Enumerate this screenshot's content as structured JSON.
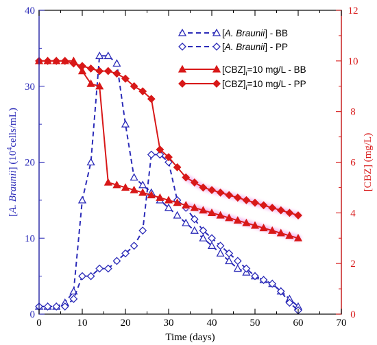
{
  "chart_data": {
    "type": "line",
    "xlabel": "Time (days)",
    "xlim": [
      0,
      70
    ],
    "x_ticks": [
      "0",
      "10",
      "20",
      "30",
      "40",
      "50",
      "60",
      "70"
    ],
    "left_axis": {
      "label_prefix": "[",
      "label_italic": "A. Braunii",
      "label_mid": "] (10",
      "label_sup": "4",
      "label_suffix": "cells/mL)",
      "ylim": [
        0,
        40
      ],
      "ticks": [
        "0",
        "10",
        "20",
        "30",
        "40"
      ],
      "color": "#2b2bb8"
    },
    "right_axis": {
      "label": "[CBZ] (mg/L)",
      "ylim": [
        0,
        12
      ],
      "ticks": [
        "0",
        "2",
        "4",
        "6",
        "8",
        "10",
        "12"
      ],
      "color": "#d81818"
    },
    "series": [
      {
        "legend_prefix": "[",
        "legend_italic": "A. Braunii",
        "legend_suffix": "] - BB",
        "axis": "left",
        "marker": "triangle",
        "line": "dashed",
        "color": "#2b2bb8",
        "x": [
          0,
          2,
          4,
          6,
          8,
          10,
          12,
          14,
          16,
          18,
          20,
          22,
          24,
          26,
          28,
          30,
          32,
          34,
          36,
          38,
          40,
          42,
          44,
          46,
          48,
          50,
          52,
          54,
          56,
          58,
          60
        ],
        "y": [
          1,
          1,
          1,
          1.5,
          3,
          15,
          20,
          34,
          34,
          33,
          25,
          18,
          17,
          16,
          15,
          14,
          13,
          12,
          11,
          10,
          9,
          8,
          7,
          6,
          5.5,
          5,
          4.5,
          4,
          3,
          2,
          1
        ]
      },
      {
        "legend_prefix": "[",
        "legend_italic": "A. Braunii",
        "legend_suffix": "] - PP",
        "axis": "left",
        "marker": "diamond",
        "line": "dashed",
        "color": "#2b2bb8",
        "x": [
          0,
          2,
          4,
          6,
          8,
          10,
          12,
          14,
          16,
          18,
          20,
          22,
          24,
          26,
          28,
          30,
          32,
          34,
          36,
          38,
          40,
          42,
          44,
          46,
          48,
          50,
          52,
          54,
          56,
          58,
          60
        ],
        "y": [
          1,
          1,
          1,
          1,
          2,
          5,
          5,
          6,
          6,
          7,
          8,
          9,
          11,
          21,
          21,
          20,
          15,
          14,
          12.5,
          11,
          10,
          9,
          8,
          7,
          6,
          5,
          4.5,
          4,
          3,
          1.5,
          0.5
        ]
      },
      {
        "legend_prefix": "[CBZ]",
        "legend_sub": "i",
        "legend_suffix": "=10 mg/L - BB",
        "axis": "right",
        "marker": "triangle-filled",
        "line": "solid",
        "color": "#d81818",
        "x": [
          0,
          2,
          4,
          6,
          8,
          10,
          12,
          14,
          16,
          18,
          20,
          22,
          24,
          26,
          28,
          30,
          32,
          34,
          36,
          38,
          40,
          42,
          44,
          46,
          48,
          50,
          52,
          54,
          56,
          58,
          60
        ],
        "y": [
          10,
          10,
          10,
          10,
          10,
          9.6,
          9.1,
          9.0,
          5.2,
          5.1,
          5.0,
          4.9,
          4.8,
          4.7,
          4.6,
          4.5,
          4.4,
          4.3,
          4.2,
          4.1,
          4.0,
          3.9,
          3.8,
          3.7,
          3.6,
          3.5,
          3.4,
          3.3,
          3.2,
          3.1,
          3.0
        ]
      },
      {
        "legend_prefix": "[CBZ]",
        "legend_sub": "i",
        "legend_suffix": "=10 mg/L - PP",
        "axis": "right",
        "marker": "diamond-filled",
        "line": "solid",
        "color": "#d81818",
        "x": [
          0,
          2,
          4,
          6,
          8,
          10,
          12,
          14,
          16,
          18,
          20,
          22,
          24,
          26,
          28,
          30,
          32,
          34,
          36,
          38,
          40,
          42,
          44,
          46,
          48,
          50,
          52,
          54,
          56,
          58,
          60
        ],
        "y": [
          10,
          10,
          10,
          10,
          9.9,
          9.8,
          9.7,
          9.6,
          9.6,
          9.5,
          9.3,
          9.0,
          8.8,
          8.5,
          6.5,
          6.2,
          5.8,
          5.4,
          5.2,
          5.0,
          4.9,
          4.8,
          4.7,
          4.6,
          4.5,
          4.4,
          4.3,
          4.2,
          4.1,
          4.0,
          3.9
        ]
      }
    ]
  }
}
